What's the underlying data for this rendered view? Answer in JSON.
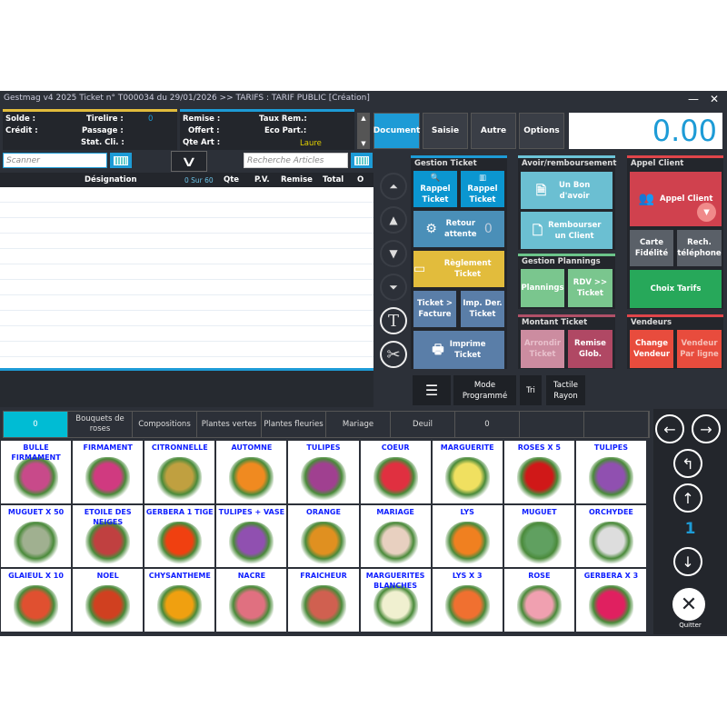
{
  "title": "Gestmag v4 2025   Ticket n° T000034 du 29/01/2026  >>  TARIFS : TARIF PUBLIC   [Création]",
  "window": {
    "minimize": "—",
    "close": "✕"
  },
  "info_left": {
    "solde": "Solde :",
    "credit": "Crédit :",
    "tirelire": "Tirelire :",
    "tirelire_value": "0",
    "passage": "Passage :",
    "stat": "Stat. Cli. :"
  },
  "info_right": {
    "remise": "Remise :",
    "offert": "Offert :",
    "qte": "Qte Art :",
    "taux": "Taux Rem.:",
    "eco": "Eco Part.:",
    "vendeur": "Laure"
  },
  "tabs": [
    "Document",
    "Saisie",
    "Autre",
    "Options"
  ],
  "display_total": "0.00",
  "scanner": {
    "placeholder": "Scanner"
  },
  "search": {
    "placeholder": "Recherche Articles"
  },
  "table": {
    "designation": "Désignation",
    "count": "0 Sur 60",
    "qte": "Qte",
    "pv": "P.V.",
    "remise": "Remise",
    "total": "Total",
    "o": "O"
  },
  "gestion_ticket": {
    "title": "Gestion Ticket",
    "rappel1": "Rappel Ticket",
    "rappel2": "Rappel Ticket",
    "retour": "Retour attente",
    "retour_count": "0",
    "reglement": "Règlement Ticket",
    "facture": "Ticket > Facture",
    "impder": "Imp. Der. Ticket",
    "imprime": "Imprime Ticket"
  },
  "avoir": {
    "title": "Avoir/remboursement",
    "bon": "Un Bon d'avoir",
    "rembourser": "Rembourser un Client"
  },
  "plannings": {
    "title": "Gestion Plannings",
    "plannings": "Plannings",
    "rdv": "RDV >> Ticket"
  },
  "montant": {
    "title": "Montant Ticket",
    "arrondir": "Arrondir Ticket",
    "remise": "Remise Glob."
  },
  "appel": {
    "title": "Appel Client",
    "appel": "Appel Client",
    "carte": "Carte Fidélité",
    "rech": "Rech. téléphone",
    "tarifs": "Choix Tarifs"
  },
  "vendeurs": {
    "title": "Vendeurs",
    "change": "Change Vendeur",
    "ligne": "Vendeur Par ligne"
  },
  "tools": {
    "mode": "Mode Programmé",
    "tri": "Tri",
    "tactile": "Tactile Rayon"
  },
  "categories": [
    "0",
    "Bouquets de roses",
    "Compositions",
    "Plantes vertes",
    "Plantes fleuries",
    "Mariage",
    "Deuil",
    "0",
    "",
    ""
  ],
  "products": [
    {
      "name": "BULLE FIRMAMENT",
      "color": "#c84a8a"
    },
    {
      "name": "FIRMAMENT",
      "color": "#d03a80"
    },
    {
      "name": "CITRONNELLE",
      "color": "#c0a040"
    },
    {
      "name": "AUTOMNE",
      "color": "#f08a20"
    },
    {
      "name": "TULIPES",
      "color": "#a04090"
    },
    {
      "name": "COEUR",
      "color": "#e03040"
    },
    {
      "name": "MARGUERITE",
      "color": "#f0e060"
    },
    {
      "name": "ROSES X 5",
      "color": "#d01818"
    },
    {
      "name": "TULIPES",
      "color": "#9050b0"
    },
    {
      "name": "MUGUET X 50",
      "color": "#a0b090"
    },
    {
      "name": "ETOILE DES NEIGES",
      "color": "#c04040"
    },
    {
      "name": "GERBERA 1 TIGE",
      "color": "#f04010"
    },
    {
      "name": "TULIPES + VASE",
      "color": "#9050b0"
    },
    {
      "name": "ORANGE",
      "color": "#e09020"
    },
    {
      "name": "MARIAGE",
      "color": "#e8d0c0"
    },
    {
      "name": "LYS",
      "color": "#f08020"
    },
    {
      "name": "MUGUET",
      "color": "#60a060"
    },
    {
      "name": "ORCHYDEE",
      "color": "#dddddd"
    },
    {
      "name": "GLAIEUL X 10",
      "color": "#e05030"
    },
    {
      "name": "NOEL",
      "color": "#d04020"
    },
    {
      "name": "CHYSANTHEME",
      "color": "#f0a010"
    },
    {
      "name": "NACRE",
      "color": "#e07080"
    },
    {
      "name": "FRAICHEUR",
      "color": "#d06050"
    },
    {
      "name": "MARGUERITES BLANCHES",
      "color": "#f0f0d0"
    },
    {
      "name": "LYS X 3",
      "color": "#f07030"
    },
    {
      "name": "ROSE",
      "color": "#f0a0b0"
    },
    {
      "name": "GERBERA X 3",
      "color": "#e02060"
    }
  ],
  "nav": {
    "page": "1",
    "quit": "Quitter"
  },
  "colors": {
    "accent": "#1d9bd6",
    "yellow": "#e2bc3c",
    "red": "#d0414e"
  }
}
